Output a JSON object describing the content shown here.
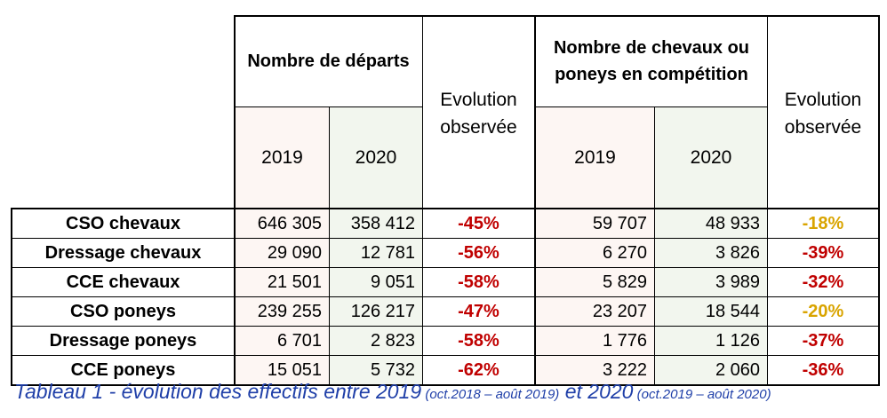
{
  "table": {
    "group_headers": {
      "departs": "Nombre de départs",
      "chevaux_line1": "Nombre de chevaux ou",
      "chevaux_line2": "poneys en compétition",
      "evolution_line1": "Evolution",
      "evolution_line2": "observée"
    },
    "years": [
      "2019",
      "2020",
      "2019",
      "2020"
    ],
    "rows": [
      {
        "label": "CSO chevaux",
        "dep2019": "646 305",
        "dep2020": "358 412",
        "evo1": "-45%",
        "ch2019": "59 707",
        "ch2020": "48 933",
        "evo2": "-18%"
      },
      {
        "label": "Dressage chevaux",
        "dep2019": "29 090",
        "dep2020": "12 781",
        "evo1": "-56%",
        "ch2019": "6 270",
        "ch2020": "3 826",
        "evo2": "-39%"
      },
      {
        "label": "CCE chevaux",
        "dep2019": "21 501",
        "dep2020": "9 051",
        "evo1": "-58%",
        "ch2019": "5 829",
        "ch2020": "3 989",
        "evo2": "-32%"
      },
      {
        "label": "CSO poneys",
        "dep2019": "239 255",
        "dep2020": "126 217",
        "evo1": "-47%",
        "ch2019": "23 207",
        "ch2020": "18 544",
        "evo2": "-20%"
      },
      {
        "label": "Dressage poneys",
        "dep2019": "6 701",
        "dep2020": "2 823",
        "evo1": "-58%",
        "ch2019": "1 776",
        "ch2020": "1 126",
        "evo2": "-37%"
      },
      {
        "label": "CCE poneys",
        "dep2019": "15 051",
        "dep2020": "5 732",
        "evo1": "-62%",
        "ch2019": "3 222",
        "ch2020": "2 060",
        "evo2": "-36%"
      }
    ],
    "colors": {
      "strong_decline": "#c00000",
      "moderate_decline": "#d9a400"
    },
    "moderate_rows": [
      0,
      3
    ]
  },
  "caption": {
    "main1": "Tableau 1 - évolution des effectifs entre 2019",
    "small1": " (oct.2018 – août 2019)",
    "main2": " et 2020",
    "small2": " (oct.2019 – août 2020)"
  }
}
